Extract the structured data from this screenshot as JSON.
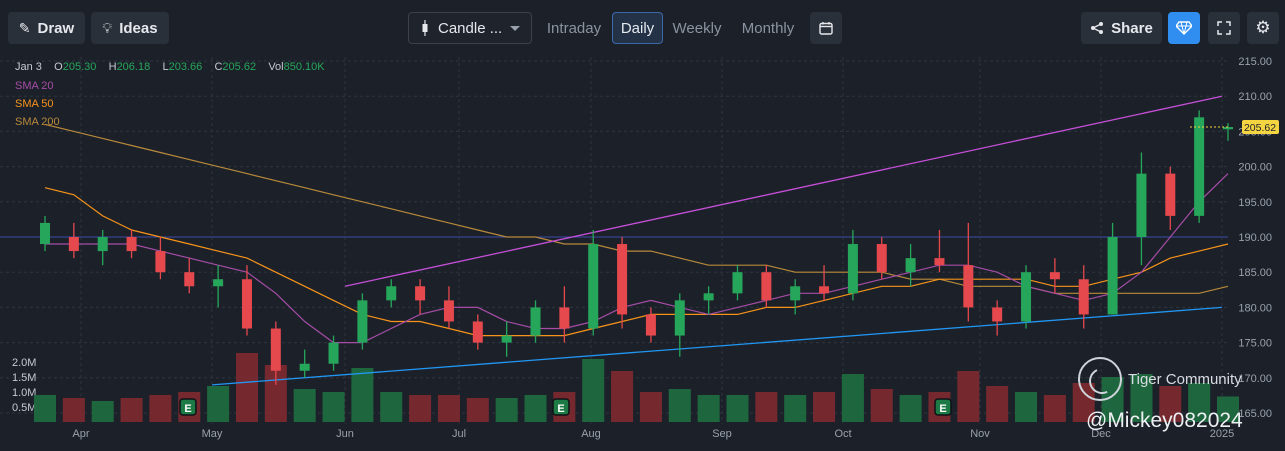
{
  "toolbar": {
    "draw_label": "Draw",
    "ideas_label": "Ideas",
    "chart_type_label": "Candle ...",
    "tabs": [
      "Intraday",
      "Daily",
      "Weekly",
      "Monthly"
    ],
    "active_tab": "Daily",
    "share_label": "Share"
  },
  "legend": {
    "date": "Jan 3",
    "open_label": "O",
    "open": "205.30",
    "high_label": "H",
    "high": "206.18",
    "low_label": "L",
    "low": "203.66",
    "close_label": "C",
    "close": "205.62",
    "vol_label": "Vol",
    "vol": "850.10K",
    "sma": [
      {
        "label": "SMA 20",
        "color": "#a64ca6"
      },
      {
        "label": "SMA 50",
        "color": "#f7931a"
      },
      {
        "label": "SMA 200",
        "color": "#b8893a"
      }
    ]
  },
  "watermark": {
    "community": "Tiger Community",
    "handle": "@Mickey082024"
  },
  "colors": {
    "up": "#26a65b",
    "down": "#e5484d",
    "trend_upper": "#c64fd9",
    "trend_lower": "#2196f3",
    "hline": "#3c4aa6",
    "price_tag": "#f5d442"
  },
  "chart_data": {
    "type": "candlestick",
    "price_axis": {
      "min": 165,
      "max": 215,
      "ticks": [
        "215.00",
        "210.00",
        "205.00",
        "200.00",
        "195.00",
        "190.00",
        "185.00",
        "180.00",
        "175.00",
        "170.00",
        "165.00"
      ]
    },
    "volume_axis": {
      "ticks": [
        "2.0M",
        "1.5M",
        "1.0M",
        "0.5M"
      ],
      "max": 2.5
    },
    "x_axis": {
      "ticks": [
        "Apr",
        "May",
        "Jun",
        "Jul",
        "Aug",
        "Sep",
        "Oct",
        "Nov",
        "Dec",
        "2025"
      ]
    },
    "last_price": "205.62",
    "earnings_markers": [
      "E",
      "E",
      "E"
    ],
    "horizontal_line": 190,
    "trend_lines": [
      {
        "name": "upper",
        "from": {
          "x": "Jun",
          "y": 183
        },
        "to": {
          "x": "2025",
          "y": 210
        }
      },
      {
        "name": "lower",
        "from": {
          "x": "May",
          "y": 169
        },
        "to": {
          "x": "2025",
          "y": 180
        }
      }
    ],
    "candles": [
      {
        "x": "Mar 26",
        "o": 189,
        "h": 193,
        "l": 188,
        "c": 192,
        "v": 0.9
      },
      {
        "x": "Apr 1",
        "o": 190,
        "h": 192,
        "l": 187,
        "c": 188,
        "v": 0.8
      },
      {
        "x": "Apr 8",
        "o": 188,
        "h": 191,
        "l": 186,
        "c": 190,
        "v": 0.7
      },
      {
        "x": "Apr 15",
        "o": 190,
        "h": 191,
        "l": 187,
        "c": 188,
        "v": 0.8
      },
      {
        "x": "Apr 22",
        "o": 188,
        "h": 190,
        "l": 184,
        "c": 185,
        "v": 0.9
      },
      {
        "x": "Apr 29",
        "o": 185,
        "h": 187,
        "l": 182,
        "c": 183,
        "v": 1.0
      },
      {
        "x": "May 6",
        "o": 183,
        "h": 186,
        "l": 180,
        "c": 184,
        "v": 1.2
      },
      {
        "x": "May 13",
        "o": 184,
        "h": 186,
        "l": 176,
        "c": 177,
        "v": 2.3
      },
      {
        "x": "May 20",
        "o": 177,
        "h": 178,
        "l": 169,
        "c": 171,
        "v": 1.9
      },
      {
        "x": "May 27",
        "o": 171,
        "h": 174,
        "l": 170,
        "c": 172,
        "v": 1.1
      },
      {
        "x": "Jun 3",
        "o": 172,
        "h": 176,
        "l": 171,
        "c": 175,
        "v": 1.0
      },
      {
        "x": "Jun 10",
        "o": 175,
        "h": 182,
        "l": 174,
        "c": 181,
        "v": 1.8
      },
      {
        "x": "Jun 17",
        "o": 181,
        "h": 184,
        "l": 180,
        "c": 183,
        "v": 1.0
      },
      {
        "x": "Jun 24",
        "o": 183,
        "h": 184,
        "l": 179,
        "c": 181,
        "v": 0.9
      },
      {
        "x": "Jul 1",
        "o": 181,
        "h": 183,
        "l": 177,
        "c": 178,
        "v": 0.9
      },
      {
        "x": "Jul 8",
        "o": 178,
        "h": 179,
        "l": 174,
        "c": 175,
        "v": 0.8
      },
      {
        "x": "Jul 15",
        "o": 175,
        "h": 178,
        "l": 173,
        "c": 176,
        "v": 0.8
      },
      {
        "x": "Jul 22",
        "o": 176,
        "h": 181,
        "l": 175,
        "c": 180,
        "v": 0.9
      },
      {
        "x": "Jul 29",
        "o": 180,
        "h": 183,
        "l": 175,
        "c": 177,
        "v": 1.0
      },
      {
        "x": "Aug 5",
        "o": 177,
        "h": 191,
        "l": 176,
        "c": 189,
        "v": 2.1
      },
      {
        "x": "Aug 12",
        "o": 189,
        "h": 190,
        "l": 177,
        "c": 179,
        "v": 1.7
      },
      {
        "x": "Aug 19",
        "o": 179,
        "h": 180,
        "l": 175,
        "c": 176,
        "v": 1.0
      },
      {
        "x": "Aug 26",
        "o": 176,
        "h": 182,
        "l": 173,
        "c": 181,
        "v": 1.1
      },
      {
        "x": "Sep 2",
        "o": 181,
        "h": 183,
        "l": 179,
        "c": 182,
        "v": 0.9
      },
      {
        "x": "Sep 9",
        "o": 182,
        "h": 186,
        "l": 181,
        "c": 185,
        "v": 0.9
      },
      {
        "x": "Sep 16",
        "o": 185,
        "h": 186,
        "l": 180,
        "c": 181,
        "v": 1.0
      },
      {
        "x": "Sep 23",
        "o": 181,
        "h": 184,
        "l": 179,
        "c": 183,
        "v": 0.9
      },
      {
        "x": "Sep 30",
        "o": 183,
        "h": 186,
        "l": 181,
        "c": 182,
        "v": 1.0
      },
      {
        "x": "Oct 7",
        "o": 182,
        "h": 191,
        "l": 181,
        "c": 189,
        "v": 1.6
      },
      {
        "x": "Oct 14",
        "o": 189,
        "h": 190,
        "l": 184,
        "c": 185,
        "v": 1.1
      },
      {
        "x": "Oct 21",
        "o": 185,
        "h": 189,
        "l": 183,
        "c": 187,
        "v": 0.9
      },
      {
        "x": "Oct 28",
        "o": 187,
        "h": 191,
        "l": 185,
        "c": 186,
        "v": 1.0
      },
      {
        "x": "Nov 4",
        "o": 186,
        "h": 192,
        "l": 178,
        "c": 180,
        "v": 1.7
      },
      {
        "x": "Nov 11",
        "o": 180,
        "h": 181,
        "l": 176,
        "c": 178,
        "v": 1.2
      },
      {
        "x": "Nov 18",
        "o": 178,
        "h": 186,
        "l": 177,
        "c": 185,
        "v": 1.0
      },
      {
        "x": "Nov 25",
        "o": 185,
        "h": 187,
        "l": 182,
        "c": 184,
        "v": 0.9
      },
      {
        "x": "Dec 2",
        "o": 184,
        "h": 186,
        "l": 177,
        "c": 179,
        "v": 1.3
      },
      {
        "x": "Dec 9",
        "o": 179,
        "h": 192,
        "l": 179,
        "c": 190,
        "v": 1.5
      },
      {
        "x": "Dec 16",
        "o": 190,
        "h": 202,
        "l": 186,
        "c": 199,
        "v": 1.6
      },
      {
        "x": "Dec 23",
        "o": 199,
        "h": 200,
        "l": 191,
        "c": 193,
        "v": 1.2
      },
      {
        "x": "Dec 30",
        "o": 193,
        "h": 208,
        "l": 192,
        "c": 207,
        "v": 1.3
      },
      {
        "x": "Jan 3",
        "o": 205.3,
        "h": 206.18,
        "l": 203.66,
        "c": 205.62,
        "v": 0.85
      }
    ],
    "sma20": [
      189,
      189,
      189,
      189,
      188,
      187,
      186,
      185,
      182,
      178,
      175,
      175,
      177,
      179,
      180,
      180,
      178,
      177,
      177,
      178,
      180,
      181,
      180,
      179,
      180,
      181,
      182,
      182,
      183,
      184,
      185,
      186,
      186,
      185,
      183,
      182,
      181,
      182,
      185,
      190,
      195,
      199
    ],
    "sma50": [
      197,
      196,
      193,
      191,
      190,
      189,
      188,
      187,
      185,
      183,
      181,
      179,
      178,
      178,
      177,
      176,
      176,
      176,
      176,
      177,
      178,
      179,
      179,
      179,
      179,
      180,
      180,
      181,
      182,
      183,
      183,
      184,
      184,
      184,
      184,
      183,
      183,
      184,
      185,
      187,
      188,
      189
    ],
    "sma200": [
      206,
      205,
      204,
      203,
      202,
      201,
      200,
      199,
      198,
      197,
      196,
      195,
      194,
      193,
      192,
      191,
      190,
      190,
      189,
      189,
      188,
      188,
      187,
      186,
      186,
      186,
      185,
      185,
      185,
      185,
      184,
      184,
      183,
      183,
      183,
      182,
      182,
      182,
      182,
      182,
      182,
      183
    ]
  }
}
